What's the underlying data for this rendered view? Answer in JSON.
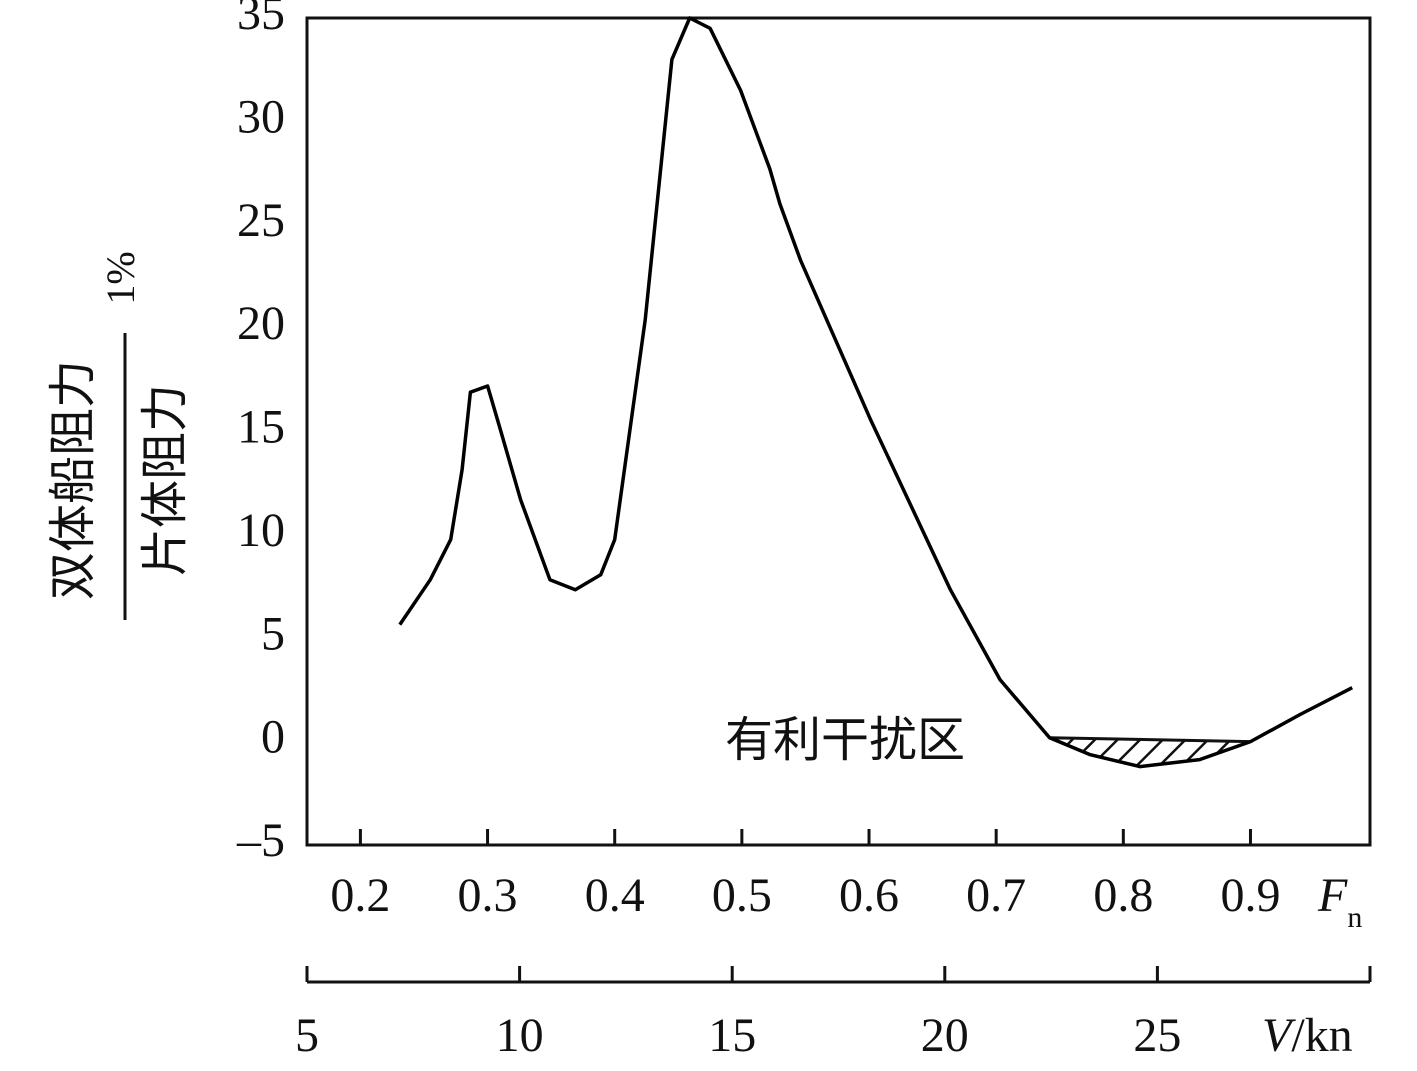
{
  "chart_data": {
    "type": "line",
    "y_label_numerator": "双体船阻力",
    "y_label_denominator": "片体阻力",
    "y_label_unit": "1%",
    "x_label": "F",
    "x_label_sub": "n",
    "x2_label": "V",
    "x2_label_unit": "/kn",
    "annotation": "有利干扰区",
    "color": "#000000",
    "x": [
      0.231,
      0.255,
      0.271,
      0.28,
      0.2865,
      0.3,
      0.31,
      0.326,
      0.349,
      0.369,
      0.389,
      0.4,
      0.424,
      0.445,
      0.459,
      0.475,
      0.499,
      0.522,
      0.53,
      0.546,
      0.601,
      0.664,
      0.703,
      0.742,
      0.774,
      0.813,
      0.86,
      0.9,
      0.939,
      0.98
    ],
    "values": [
      5.66,
      7.83,
      9.77,
      13.15,
      16.9,
      17.2,
      15.1,
      11.7,
      7.83,
      7.35,
      8.07,
      9.77,
      20.4,
      33.0,
      35.0,
      34.5,
      31.5,
      27.7,
      26.0,
      23.3,
      15.6,
      7.35,
      3.0,
      0.19,
      -0.63,
      -1.21,
      -0.87,
      0.0,
      1.31,
      2.61
    ],
    "shaded_xrange": [
      0.742,
      0.9
    ],
    "xlim": [
      0.158,
      0.994
    ],
    "xticks": [
      0.2,
      0.3,
      0.4,
      0.5,
      0.6,
      0.7,
      0.8,
      0.9
    ],
    "ylim": [
      -5,
      35
    ],
    "yticks": [
      {
        "value": -5,
        "label": "–5"
      },
      0,
      5,
      10,
      15,
      20,
      25,
      30,
      35
    ],
    "x2lim": [
      5,
      30
    ],
    "x2ticks": [
      5,
      10,
      15,
      20,
      25
    ]
  }
}
